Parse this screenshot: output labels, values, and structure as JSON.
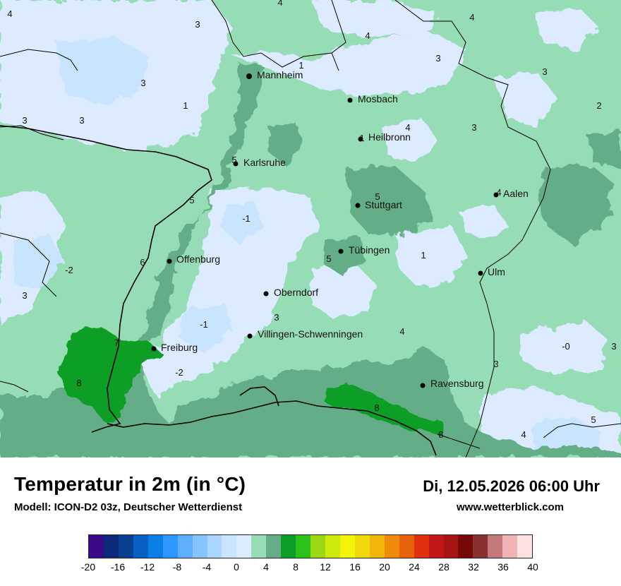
{
  "header": {
    "title": "Temperatur in 2m (in °C)",
    "model": "Modell: ICON-D2 03z, Deutscher Wetterdienst",
    "datetime": "Di, 12.05.2026 06:00 Uhr",
    "website": "www.wetterblick.com"
  },
  "cities": [
    {
      "name": "Mannheim"
    },
    {
      "name": "Mosbach"
    },
    {
      "name": "Heilbronn"
    },
    {
      "name": "Karlsruhe"
    },
    {
      "name": "Stuttgart"
    },
    {
      "name": "Aalen"
    },
    {
      "name": "Tübingen"
    },
    {
      "name": "Offenburg"
    },
    {
      "name": "Ulm"
    },
    {
      "name": "Oberndorf"
    },
    {
      "name": "Villingen-Schwenningen"
    },
    {
      "name": "Freiburg"
    },
    {
      "name": "Ravensburg"
    }
  ],
  "value_labels": [
    "4",
    "4",
    "3",
    "4",
    "4",
    "3",
    "3",
    "1",
    "3",
    "3",
    "1",
    "3",
    "2",
    "3",
    "3",
    "4",
    "1",
    "5",
    "5",
    "5",
    "4",
    "-1",
    "6",
    "5",
    "1",
    "-2",
    "3",
    "3",
    "-1",
    "4",
    "7",
    "8",
    "-2",
    "-0",
    "3",
    "4",
    "8",
    "8",
    "5",
    "4"
  ],
  "legend": {
    "ticks": [
      "-20",
      "-16",
      "-12",
      "-8",
      "-4",
      "0",
      "4",
      "8",
      "12",
      "16",
      "20",
      "24",
      "28",
      "32",
      "36",
      "40"
    ],
    "colors": [
      "#3a0a8a",
      "#0b2a7a",
      "#083f8f",
      "#0a5fc2",
      "#0a7fe8",
      "#2e97ff",
      "#5eaeff",
      "#86c3ff",
      "#aad5ff",
      "#c9e4ff",
      "#dcebff",
      "#96dcb4",
      "#64ad87",
      "#0d9e27",
      "#2ac21a",
      "#9ad813",
      "#ccea0b",
      "#f4f40a",
      "#f0d90a",
      "#f0b40a",
      "#f08a0a",
      "#e8620a",
      "#e03010",
      "#c01818",
      "#a81414",
      "#760808",
      "#8b3030",
      "#c47a78",
      "#f0b4b4",
      "#fde0e0"
    ]
  }
}
